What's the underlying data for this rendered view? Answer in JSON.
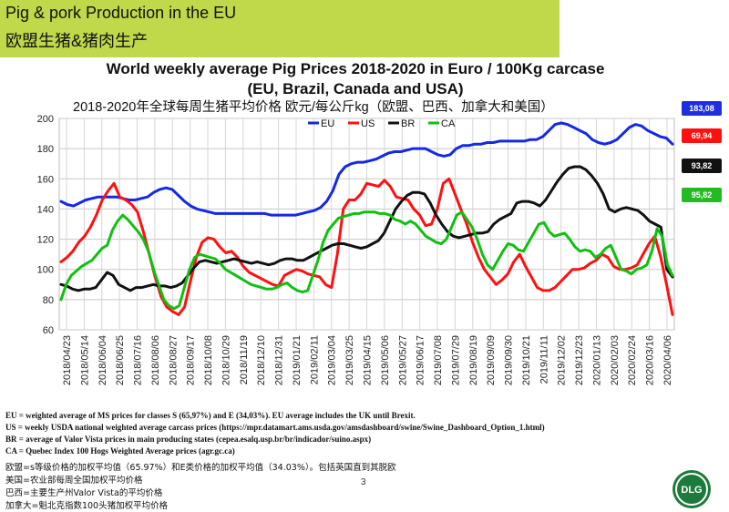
{
  "banner": {
    "title_en": "Pig & pork Production in the EU",
    "title_cn": "欧盟生猪&猪肉生产"
  },
  "chart_data": {
    "type": "line",
    "title_line1": "World weekly average Pig Prices 2018-2020 in Euro / 100Kg carcase",
    "title_line2": "(EU, Brazil, Canada and USA)",
    "subtitle_cn": "2018-2020年全球每周生猪平均价格  欧元/每公斤kg（欧盟、巴西、加拿大和美国）",
    "ylim": [
      60,
      200
    ],
    "yticks": [
      "60",
      "80",
      "100",
      "120",
      "140",
      "160",
      "180",
      "200"
    ],
    "grid": true,
    "legend_placement": "top-center",
    "x_start_label": "2018/04/23",
    "x_end_label": "2020/04/06",
    "xtick_labels": [
      "2018/04/23",
      "2018/05/14",
      "2018/06/04",
      "2018/06/25",
      "2018/07/16",
      "2018/08/06",
      "2018/08/27",
      "2018/09/17",
      "2018/10/08",
      "2018/10/29",
      "2018/11/19",
      "2018/12/10",
      "2018/12/31",
      "2019/01/21",
      "2019/02/11",
      "2019/03/04",
      "2019/03/25",
      "2019/04/15",
      "2019/05/06",
      "2019/05/27",
      "2019/06/17",
      "2019/07/08",
      "2019/07/29",
      "2019/08/19",
      "2019/09/09",
      "2019/09/30",
      "2019/10/21",
      "2019/11/11",
      "2019/12/02",
      "2019/12/23",
      "2020/01/13",
      "2020/02/03",
      "2020/02/24",
      "2020/03/16",
      "2020/04/06"
    ],
    "series": [
      {
        "name": "EU",
        "color": "#1428e6",
        "last_value": "183,08",
        "badge_bg": "#1e2ee0",
        "badge_fg": "#ffffff",
        "values": [
          145,
          143,
          142,
          144,
          146,
          147,
          148,
          148,
          148,
          148,
          147,
          146,
          146,
          147,
          148,
          151,
          153,
          154,
          153,
          149,
          145,
          142,
          140,
          139,
          138,
          137,
          137,
          137,
          137,
          137,
          137,
          137,
          137,
          137,
          136,
          136,
          136,
          136,
          136,
          137,
          138,
          139,
          141,
          145,
          152,
          163,
          168,
          170,
          171,
          171,
          172,
          173,
          175,
          177,
          178,
          178,
          179,
          180,
          180,
          180,
          178,
          176,
          175,
          176,
          180,
          182,
          182,
          183,
          183,
          184,
          184,
          185,
          185,
          185,
          185,
          185,
          186,
          186,
          188,
          192,
          196,
          197,
          196,
          194,
          192,
          190,
          186,
          184,
          183,
          184,
          186,
          190,
          194,
          196,
          195,
          192,
          190,
          188,
          187,
          183
        ]
      },
      {
        "name": "US",
        "color": "#ff1010",
        "last_value": "69,94",
        "badge_bg": "#ff1010",
        "badge_fg": "#ffffff",
        "values": [
          105,
          108,
          112,
          118,
          122,
          128,
          136,
          146,
          152,
          157,
          148,
          146,
          143,
          138,
          125,
          110,
          95,
          82,
          75,
          72,
          70,
          75,
          92,
          108,
          118,
          121,
          120,
          115,
          111,
          112,
          108,
          102,
          98,
          96,
          94,
          92,
          90,
          89,
          96,
          98,
          100,
          99,
          97,
          96,
          95,
          90,
          88,
          110,
          140,
          146,
          146,
          150,
          157,
          156,
          155,
          159,
          155,
          148,
          147,
          146,
          140,
          136,
          129,
          130,
          140,
          157,
          160,
          150,
          140,
          130,
          118,
          108,
          100,
          95,
          90,
          93,
          97,
          105,
          110,
          102,
          95,
          88,
          86,
          86,
          88,
          92,
          96,
          100,
          100,
          101,
          104,
          106,
          110,
          108,
          102,
          100,
          100,
          101,
          103,
          110,
          117,
          122,
          108,
          90,
          70
        ]
      },
      {
        "name": "BR",
        "color": "#111111",
        "last_value": "93,82",
        "badge_bg": "#111111",
        "badge_fg": "#ffffff",
        "values": [
          90,
          89,
          87,
          86,
          87,
          87,
          88,
          93,
          98,
          96,
          90,
          88,
          86,
          88,
          88,
          89,
          90,
          89,
          89,
          88,
          89,
          91,
          96,
          101,
          105,
          106,
          105,
          104,
          105,
          106,
          107,
          106,
          105,
          104,
          105,
          104,
          103,
          104,
          106,
          107,
          107,
          106,
          106,
          108,
          110,
          112,
          114,
          116,
          117,
          117,
          116,
          115,
          114,
          115,
          117,
          119,
          124,
          132,
          140,
          145,
          149,
          151,
          151,
          150,
          144,
          136,
          130,
          125,
          122,
          121,
          122,
          123,
          124,
          124,
          125,
          130,
          133,
          135,
          137,
          144,
          145,
          145,
          144,
          142,
          146,
          152,
          158,
          163,
          167,
          168,
          168,
          166,
          162,
          157,
          150,
          140,
          138,
          140,
          141,
          140,
          139,
          136,
          132,
          130,
          128,
          100,
          95
        ]
      },
      {
        "name": "CA",
        "color": "#10c010",
        "last_value": "95,82",
        "badge_bg": "#22bb22",
        "badge_fg": "#ffffff",
        "values": [
          80,
          90,
          96,
          99,
          102,
          104,
          106,
          110,
          114,
          116,
          126,
          132,
          136,
          133,
          129,
          125,
          120,
          112,
          100,
          90,
          80,
          76,
          74,
          76,
          88,
          100,
          108,
          110,
          109,
          108,
          107,
          104,
          100,
          98,
          96,
          94,
          92,
          90,
          89,
          88,
          87,
          87,
          88,
          90,
          91,
          88,
          86,
          85,
          86,
          96,
          106,
          118,
          126,
          130,
          134,
          135,
          136,
          137,
          137,
          138,
          138,
          138,
          137,
          137,
          136,
          133,
          132,
          130,
          132,
          130,
          126,
          122,
          120,
          118,
          117,
          120,
          128,
          136,
          138,
          133,
          128,
          120,
          110,
          103,
          100,
          106,
          112,
          117,
          116,
          113,
          112,
          118,
          124,
          130,
          131,
          125,
          122,
          123,
          124,
          120,
          115,
          112,
          113,
          112,
          108,
          110,
          114,
          116,
          108,
          100,
          99,
          97,
          100,
          101,
          103,
          112,
          127,
          122,
          103,
          96
        ]
      }
    ]
  },
  "footer": {
    "eu": "EU = weighted average of MS prices for classes S (65,97%) and E (34,03%). EU average includes the UK until Brexit.",
    "us": "US = weekly USDA national weighted average carcass prices (https://mpr.datamart.ams.usda.gov/amsdashboard/swine/Swine_Dashboard_Option_1.html)",
    "br": "BR = average of Valor Vista prices in main producing states (cepea.esalq.usp.br/br/indicador/suino.aspx)",
    "ca": "CA = Quebec Index 100 Hogs Weighted Average prices (agr.gc.ca)",
    "cn_eu": "欧盟=s等级价格的加权平均值（65.97%）和E类价格的加权平均值（34.03%）。包括英国直到其脱欧",
    "cn_us": "美国=农业部每周全国加权平均价格",
    "cn_br": "巴西=主要生产州Valor Vista的平均价格",
    "cn_ca": "加拿大=魁北克指数100头猪加权平均价格"
  },
  "page_number": "3",
  "logo_text": "DLG"
}
